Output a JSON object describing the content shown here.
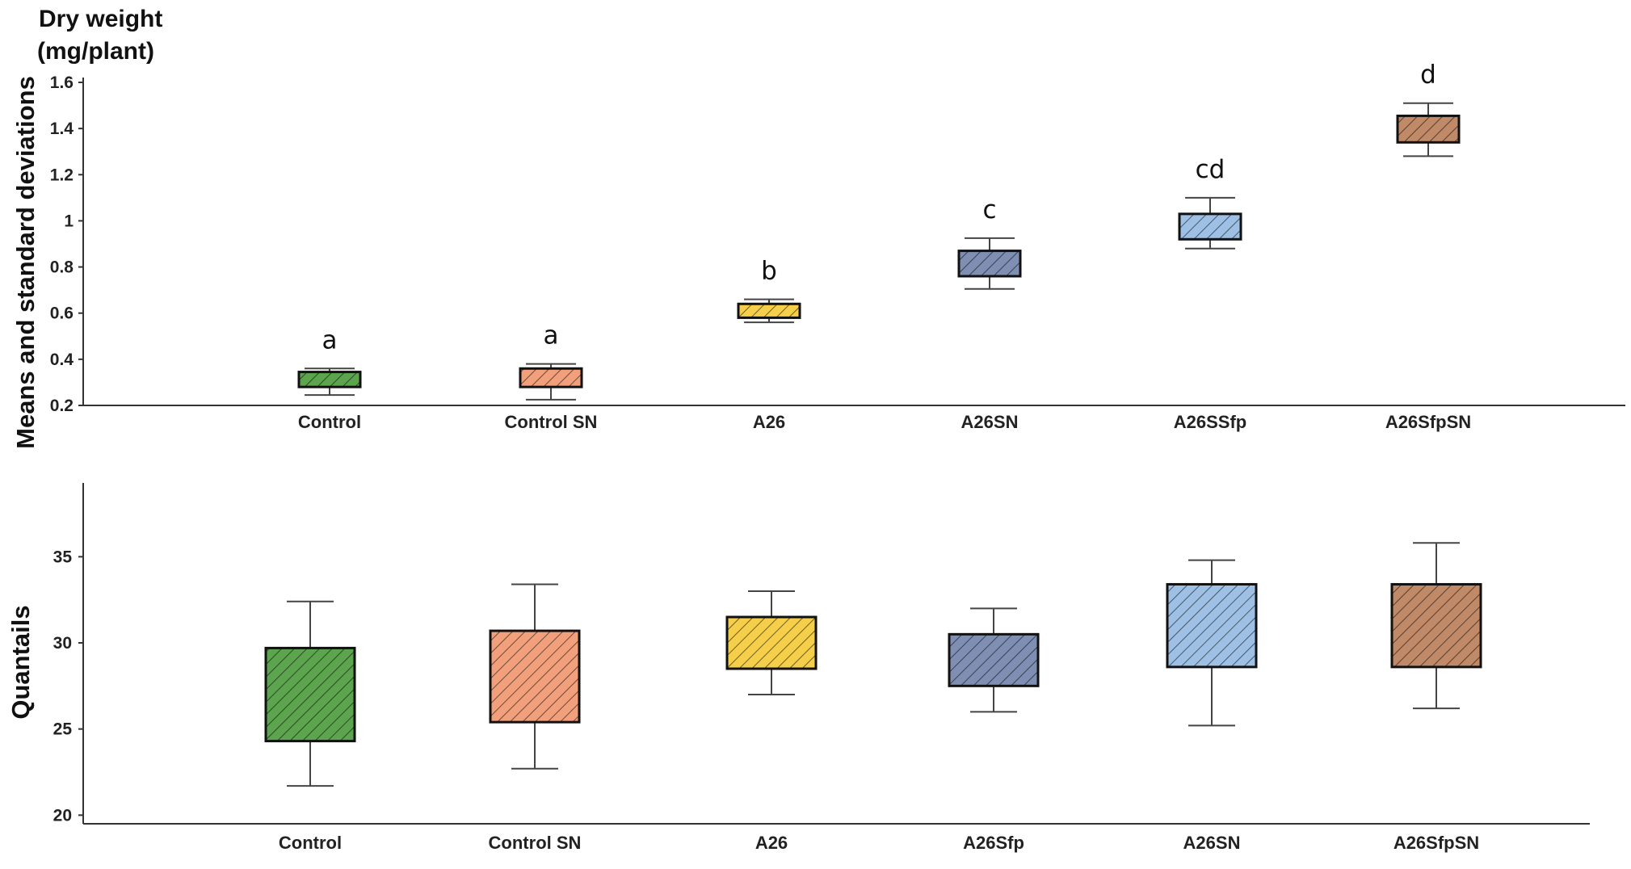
{
  "chart_data": [
    {
      "type": "box",
      "title": "Dry weight",
      "title_line2": "(mg/plant)",
      "xlabel": "",
      "ylabel": "Means and standard deviations",
      "ylim": [
        0.2,
        1.6
      ],
      "yticks": [
        0.2,
        0.4,
        0.6,
        0.8,
        1,
        1.2,
        1.4,
        1.6
      ],
      "ytick_labels": [
        "0.2",
        "0.4",
        "0.6",
        "0.8",
        "1",
        "1.2",
        "1.4",
        "1.6"
      ],
      "boxes": [
        {
          "label": "Control",
          "whisker_low": 0.245,
          "box_low": 0.28,
          "box_high": 0.345,
          "whisker_high": 0.36,
          "significance": "a",
          "color": "#5ca54e"
        },
        {
          "label": "Control SN",
          "whisker_low": 0.225,
          "box_low": 0.28,
          "box_high": 0.36,
          "whisker_high": 0.38,
          "significance": "a",
          "color": "#f2a07c"
        },
        {
          "label": "A26",
          "whisker_low": 0.56,
          "box_low": 0.58,
          "box_high": 0.64,
          "whisker_high": 0.66,
          "significance": "b",
          "color": "#f5cf4a"
        },
        {
          "label": "A26SN",
          "whisker_low": 0.705,
          "box_low": 0.76,
          "box_high": 0.87,
          "whisker_high": 0.925,
          "significance": "c",
          "color": "#7e8fb3"
        },
        {
          "label": "A26SSfp",
          "whisker_low": 0.88,
          "box_low": 0.92,
          "box_high": 1.03,
          "whisker_high": 1.1,
          "significance": "cd",
          "color": "#9ec0e5"
        },
        {
          "label": "A26SfpSN",
          "whisker_low": 1.28,
          "box_low": 1.34,
          "box_high": 1.455,
          "whisker_high": 1.51,
          "significance": "d",
          "color": "#c08a68"
        }
      ]
    },
    {
      "type": "box",
      "title": "",
      "xlabel": "",
      "ylabel": "Quantails",
      "ylim": [
        19.5,
        39
      ],
      "yticks": [
        20,
        25,
        30,
        35
      ],
      "ytick_labels": [
        "20",
        "25",
        "30",
        "35"
      ],
      "boxes": [
        {
          "label": "Control",
          "whisker_low": 21.7,
          "box_low": 24.3,
          "box_high": 29.7,
          "whisker_high": 32.4,
          "color": "#5ca54e"
        },
        {
          "label": "Control SN",
          "whisker_low": 22.7,
          "box_low": 25.4,
          "box_high": 30.7,
          "whisker_high": 33.4,
          "color": "#f2a07c"
        },
        {
          "label": "A26",
          "whisker_low": 27.0,
          "box_low": 28.5,
          "box_high": 31.5,
          "whisker_high": 33.0,
          "color": "#f5cf4a"
        },
        {
          "label": "A26Sfp",
          "whisker_low": 26.0,
          "box_low": 27.5,
          "box_high": 30.5,
          "whisker_high": 32.0,
          "color": "#7e8fb3"
        },
        {
          "label": "A26SN",
          "whisker_low": 25.2,
          "box_low": 28.6,
          "box_high": 33.4,
          "whisker_high": 34.8,
          "color": "#9ec0e5"
        },
        {
          "label": "A26SfpSN",
          "whisker_low": 26.2,
          "box_low": 28.6,
          "box_high": 33.4,
          "whisker_high": 35.8,
          "color": "#c08a68"
        }
      ]
    }
  ]
}
